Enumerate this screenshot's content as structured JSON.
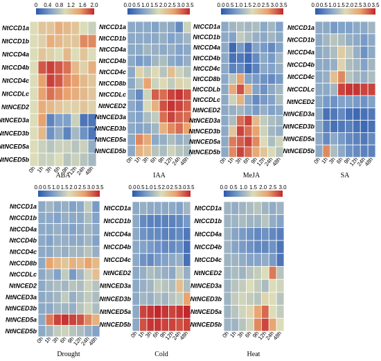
{
  "colors": {
    "scale": [
      "#2b59ad",
      "#7fa0c8",
      "#dcdcb8",
      "#e8a26d",
      "#c1272d"
    ],
    "grid_line": "#ffffff",
    "text": "#000000"
  },
  "chart_data": [
    {
      "type": "heatmap",
      "title": "ABA",
      "x": [
        "0h",
        "1h",
        "3h",
        "6h",
        "9h",
        "12h",
        "24h",
        "48h"
      ],
      "y": [
        "NtCCD1a",
        "NtCCD1b",
        "NtCCD4a",
        "NtCCD4b",
        "NtCCD4c",
        "NtCCDLc",
        "NtNCED2",
        "NtNCED3a",
        "NtNCED3b",
        "NtNCED5a",
        "NtNCED5b"
      ],
      "colorbar_ticks": [
        "0",
        "0.4",
        "0.8",
        "1.2",
        "1.6",
        "2.0"
      ],
      "colorbar_range": [
        0,
        2.0
      ],
      "values": [
        [
          1.0,
          1.2,
          1.2,
          1.4,
          1.3,
          1.2,
          1.0,
          0.9
        ],
        [
          1.0,
          1.1,
          1.4,
          1.3,
          1.2,
          1.2,
          1.6,
          1.6
        ],
        [
          1.0,
          1.2,
          1.1,
          1.0,
          1.3,
          1.0,
          1.2,
          1.0
        ],
        [
          1.0,
          1.8,
          1.9,
          1.8,
          1.7,
          1.3,
          1.1,
          1.4
        ],
        [
          1.0,
          1.5,
          1.9,
          1.8,
          1.6,
          1.5,
          1.3,
          1.2
        ],
        [
          1.0,
          1.5,
          1.7,
          1.6,
          1.5,
          1.4,
          1.3,
          1.2
        ],
        [
          1.0,
          1.4,
          1.3,
          1.2,
          1.1,
          1.1,
          1.2,
          1.1
        ],
        [
          1.0,
          1.5,
          0.3,
          0.5,
          0.5,
          0.9,
          0.2,
          0.2
        ],
        [
          1.0,
          1.3,
          0.4,
          0.6,
          0.3,
          0.7,
          0.4,
          0.2
        ],
        [
          1.0,
          0.9,
          0.8,
          0.9,
          0.9,
          0.8,
          0.9,
          0.6
        ],
        [
          1.0,
          0.9,
          0.9,
          1.0,
          0.8,
          0.9,
          0.8,
          0.7
        ]
      ]
    },
    {
      "type": "heatmap",
      "title": "IAA",
      "x": [
        "0h",
        "1h",
        "3h",
        "6h",
        "9h",
        "12h",
        "24h",
        "48h"
      ],
      "y": [
        "NtCCD1a",
        "NtCCD1b",
        "NtCCD4a",
        "NtCCD4b",
        "NtCCD4c",
        "NtCCD8b",
        "NtCCDLc",
        "NtNCED2",
        "NtNCED3a",
        "NtNCED3b",
        "NtNCED5a",
        "NtNCED5b"
      ],
      "colorbar_ticks": [
        "0.0",
        "0.5",
        "1.0",
        "1.5",
        "2.0",
        "2.5",
        "3.0",
        "3.5"
      ],
      "colorbar_range": [
        0,
        3.5
      ],
      "values": [
        [
          1.0,
          1.0,
          1.0,
          0.9,
          1.1,
          1.0,
          0.6,
          1.6
        ],
        [
          1.0,
          1.0,
          1.0,
          1.0,
          1.1,
          0.9,
          1.0,
          1.2
        ],
        [
          1.0,
          1.0,
          1.2,
          1.1,
          1.0,
          1.1,
          0.9,
          1.0
        ],
        [
          1.0,
          0.8,
          0.9,
          1.2,
          1.3,
          1.0,
          0.9,
          1.1
        ],
        [
          1.0,
          1.9,
          1.5,
          1.8,
          1.4,
          2.2,
          1.6,
          1.4
        ],
        [
          1.0,
          1.4,
          2.6,
          1.6,
          1.8,
          1.5,
          1.9,
          1.7
        ],
        [
          1.0,
          0.6,
          1.6,
          3.1,
          3.0,
          3.3,
          3.4,
          3.2
        ],
        [
          1.0,
          0.8,
          1.7,
          2.4,
          3.2,
          3.4,
          3.3,
          3.1
        ],
        [
          1.0,
          0.9,
          1.3,
          1.5,
          3.0,
          3.3,
          3.1,
          3.0
        ],
        [
          1.0,
          0.9,
          1.0,
          1.2,
          2.4,
          2.8,
          3.0,
          2.6
        ],
        [
          1.0,
          2.8,
          2.5,
          1.0,
          1.1,
          1.3,
          1.1,
          1.2
        ],
        [
          1.0,
          2.4,
          2.2,
          1.4,
          1.3,
          1.6,
          1.4,
          1.3
        ]
      ]
    },
    {
      "type": "heatmap",
      "title": "MeJA",
      "x": [
        "0h",
        "1h",
        "3h",
        "6h",
        "9h",
        "12h",
        "24h",
        "48h"
      ],
      "y": [
        "NtCCD1a",
        "NtCCD1b",
        "NtCCD4a",
        "NtCCD4b",
        "NtCCD4c",
        "NtCCD8b",
        "NtCCDLb",
        "NtCCDLc",
        "NtNCED2",
        "NtNCED3a",
        "NtNCED3b",
        "NtNCED5a",
        "NtNCED5b"
      ],
      "colorbar_ticks": [
        "0.0",
        "0.5",
        "1.0",
        "1.5",
        "2.0",
        "2.5",
        "3.0",
        "3.5"
      ],
      "colorbar_range": [
        0,
        3.5
      ],
      "values": [
        [
          1.0,
          1.2,
          1.3,
          1.2,
          1.3,
          1.0,
          1.2,
          0.9
        ],
        [
          1.0,
          0.9,
          1.5,
          1.3,
          1.1,
          1.0,
          1.2,
          1.0
        ],
        [
          1.0,
          0.2,
          0.8,
          0.3,
          0.9,
          0.8,
          0.6,
          0.9
        ],
        [
          1.0,
          0.3,
          0.4,
          0.2,
          0.6,
          1.0,
          0.8,
          1.2
        ],
        [
          1.0,
          0.5,
          0.6,
          0.2,
          0.5,
          1.0,
          0.9,
          1.1
        ],
        [
          1.0,
          1.4,
          2.6,
          0.9,
          0.8,
          0.7,
          0.6,
          0.8
        ],
        [
          1.0,
          2.5,
          3.2,
          2.4,
          0.9,
          0.7,
          1.0,
          1.2
        ],
        [
          1.0,
          1.6,
          2.4,
          1.0,
          0.6,
          0.8,
          0.9,
          1.3
        ],
        [
          1.0,
          1.1,
          1.2,
          1.0,
          0.8,
          1.1,
          0.9,
          1.0
        ],
        [
          1.0,
          1.3,
          3.0,
          3.3,
          2.3,
          1.5,
          1.3,
          1.2
        ],
        [
          1.0,
          2.1,
          3.3,
          3.0,
          2.6,
          1.6,
          1.2,
          1.1
        ],
        [
          1.0,
          2.9,
          3.1,
          3.3,
          2.8,
          1.8,
          1.3,
          1.6
        ],
        [
          1.0,
          2.8,
          3.3,
          3.0,
          2.5,
          2.1,
          1.7,
          1.4
        ]
      ]
    },
    {
      "type": "heatmap",
      "title": "SA",
      "x": [
        "0h",
        "1h",
        "3h",
        "6h",
        "9h",
        "12h",
        "24h",
        "48h"
      ],
      "y": [
        "NtCCD1a",
        "NtCCD1b",
        "NtCCD4a",
        "NtCCD4b",
        "NtCCD4c",
        "NtCCDLc",
        "NtNCED2",
        "NtNCED3a",
        "NtNCED3b",
        "NtNCED5a",
        "NtNCED5b"
      ],
      "colorbar_ticks": [
        "0.0",
        "0.5",
        "1.0",
        "1.5",
        "2.0",
        "2.5",
        "3.0",
        "3.5"
      ],
      "colorbar_range": [
        0,
        3.5
      ],
      "values": [
        [
          1.0,
          1.0,
          0.8,
          0.9,
          0.9,
          1.0,
          1.0,
          1.2
        ],
        [
          1.0,
          1.2,
          1.4,
          1.3,
          1.1,
          1.0,
          0.8,
          1.0
        ],
        [
          1.0,
          1.1,
          1.3,
          2.0,
          1.5,
          1.1,
          0.7,
          1.0
        ],
        [
          1.0,
          1.0,
          1.1,
          1.9,
          1.3,
          1.2,
          0.9,
          1.2
        ],
        [
          1.0,
          1.1,
          2.2,
          2.8,
          1.4,
          1.2,
          1.1,
          1.3
        ],
        [
          1.0,
          1.0,
          1.2,
          3.3,
          3.4,
          3.4,
          3.3,
          3.3
        ],
        [
          1.0,
          0.8,
          0.7,
          0.9,
          0.9,
          0.8,
          0.7,
          0.9
        ],
        [
          1.0,
          0.3,
          0.4,
          0.6,
          0.3,
          0.2,
          0.3,
          0.4
        ],
        [
          1.0,
          0.5,
          0.3,
          0.4,
          0.5,
          0.3,
          0.2,
          0.3
        ],
        [
          1.0,
          0.6,
          1.0,
          0.8,
          0.6,
          0.5,
          0.4,
          0.6
        ],
        [
          1.0,
          2.8,
          1.3,
          1.0,
          0.7,
          0.6,
          0.5,
          0.5
        ]
      ]
    },
    {
      "type": "heatmap",
      "title": "Drought",
      "x": [
        "0h",
        "1h",
        "3h",
        "6h",
        "9h",
        "12h",
        "24h",
        "48h"
      ],
      "y": [
        "NtCCD1a",
        "NtCCD1b",
        "NtCCD4a",
        "NtCCD4b",
        "NtCCD4c",
        "NtCCD8b",
        "NtCCDLc",
        "NtNCED2",
        "NtNCED3a",
        "NtNCED3b",
        "NtNCED5a",
        "NtNCED5b"
      ],
      "colorbar_ticks": [
        "0.0",
        "0.5",
        "1.0",
        "1.5",
        "2.0",
        "2.5",
        "3.0",
        "3.5"
      ],
      "colorbar_range": [
        0,
        3.5
      ],
      "values": [
        [
          1.0,
          1.2,
          1.0,
          1.1,
          0.9,
          1.0,
          1.5,
          0.8
        ],
        [
          1.0,
          1.0,
          0.9,
          1.1,
          1.0,
          1.0,
          1.3,
          0.9
        ],
        [
          1.0,
          1.0,
          1.1,
          1.0,
          0.9,
          1.0,
          1.2,
          1.0
        ],
        [
          1.0,
          0.9,
          1.1,
          1.1,
          1.0,
          1.0,
          1.2,
          0.9
        ],
        [
          1.0,
          1.0,
          1.2,
          1.1,
          1.2,
          1.2,
          1.4,
          1.1
        ],
        [
          1.0,
          2.6,
          2.3,
          2.1,
          2.4,
          2.3,
          2.6,
          2.3
        ],
        [
          1.0,
          1.2,
          0.9,
          1.5,
          0.8,
          1.2,
          1.6,
          2.2
        ],
        [
          1.0,
          1.2,
          1.3,
          1.2,
          1.4,
          1.3,
          1.6,
          1.4
        ],
        [
          1.0,
          1.1,
          1.2,
          1.5,
          1.1,
          1.3,
          1.5,
          1.3
        ],
        [
          1.0,
          1.0,
          1.2,
          1.2,
          1.1,
          1.4,
          1.6,
          1.3
        ],
        [
          1.0,
          2.9,
          3.3,
          3.4,
          3.3,
          3.2,
          2.8,
          2.4
        ],
        [
          1.0,
          1.2,
          1.5,
          1.6,
          1.4,
          1.3,
          1.1,
          0.9
        ]
      ]
    },
    {
      "type": "heatmap",
      "title": "Cold",
      "x": [
        "0h",
        "1h",
        "3h",
        "6h",
        "9h",
        "12h",
        "24h",
        "48h"
      ],
      "y": [
        "NtCCD1a",
        "NtCCD1b",
        "NtCCD4a",
        "NtCCD4b",
        "NtCCD4c",
        "NtNCED2",
        "NtNCED3a",
        "NtNCED3b",
        "NtNCED5a",
        "NtNCED5b"
      ],
      "colorbar_ticks": [
        "0.0",
        "0.5",
        "1.0",
        "1.5",
        "2.0",
        "2.5",
        "3.0",
        "3.5"
      ],
      "colorbar_range": [
        0,
        3.5
      ],
      "values": [
        [
          1.0,
          1.1,
          1.0,
          1.0,
          1.0,
          1.0,
          0.9,
          1.2
        ],
        [
          1.0,
          0.6,
          0.5,
          0.5,
          0.5,
          0.5,
          0.6,
          0.8
        ],
        [
          1.0,
          0.7,
          0.6,
          0.6,
          0.5,
          0.5,
          0.6,
          0.4
        ],
        [
          1.0,
          0.9,
          0.8,
          0.7,
          0.6,
          0.6,
          0.7,
          0.3
        ],
        [
          1.0,
          0.7,
          0.6,
          0.8,
          0.9,
          1.0,
          1.1,
          0.3
        ],
        [
          1.0,
          1.1,
          1.3,
          1.2,
          1.1,
          1.0,
          1.5,
          1.1
        ],
        [
          1.0,
          1.1,
          1.2,
          1.5,
          1.4,
          1.3,
          2.2,
          1.3
        ],
        [
          1.0,
          1.2,
          1.1,
          1.3,
          1.2,
          1.4,
          1.5,
          2.6
        ],
        [
          1.0,
          3.3,
          3.4,
          3.5,
          3.4,
          3.3,
          3.4,
          3.5
        ],
        [
          1.0,
          3.2,
          3.4,
          3.4,
          3.3,
          3.3,
          3.2,
          3.3
        ]
      ]
    },
    {
      "type": "heatmap",
      "title": "Heat",
      "x": [
        "0h",
        "1h",
        "3h",
        "6h",
        "9h",
        "12h",
        "24h",
        "48h"
      ],
      "y": [
        "NtCCD1a",
        "NtCCD1b",
        "NtCCD4a",
        "NtCCD4b",
        "NtCCD4c",
        "NtNCED2",
        "NtNCED3a",
        "NtNCED3b",
        "NtNCED5a",
        "NtNCED5b"
      ],
      "colorbar_ticks": [
        "0.0",
        "0.5",
        "1.0",
        "1.5",
        "2.0",
        "2.5",
        "3.0"
      ],
      "colorbar_range": [
        0,
        3.0
      ],
      "values": [
        [
          1.0,
          0.9,
          1.0,
          1.1,
          1.2,
          1.0,
          0.9,
          1.0
        ],
        [
          1.0,
          1.0,
          1.1,
          1.0,
          1.0,
          1.2,
          0.9,
          0.8
        ],
        [
          1.0,
          0.8,
          0.7,
          0.6,
          0.5,
          0.6,
          0.5,
          0.4
        ],
        [
          1.0,
          0.8,
          0.7,
          0.6,
          0.5,
          0.5,
          0.6,
          0.3
        ],
        [
          1.0,
          1.0,
          0.9,
          0.8,
          0.8,
          0.9,
          0.7,
          0.3
        ],
        [
          1.0,
          1.1,
          1.0,
          1.2,
          1.3,
          1.5,
          2.5,
          1.2
        ],
        [
          1.0,
          1.2,
          1.3,
          1.5,
          1.3,
          1.1,
          1.5,
          1.4
        ],
        [
          1.0,
          1.3,
          1.4,
          1.3,
          1.2,
          1.6,
          1.5,
          1.2
        ],
        [
          1.0,
          1.2,
          1.4,
          1.6,
          2.2,
          2.6,
          1.5,
          1.3
        ],
        [
          1.0,
          1.0,
          1.2,
          1.4,
          2.4,
          2.8,
          2.2,
          1.5
        ]
      ]
    }
  ]
}
